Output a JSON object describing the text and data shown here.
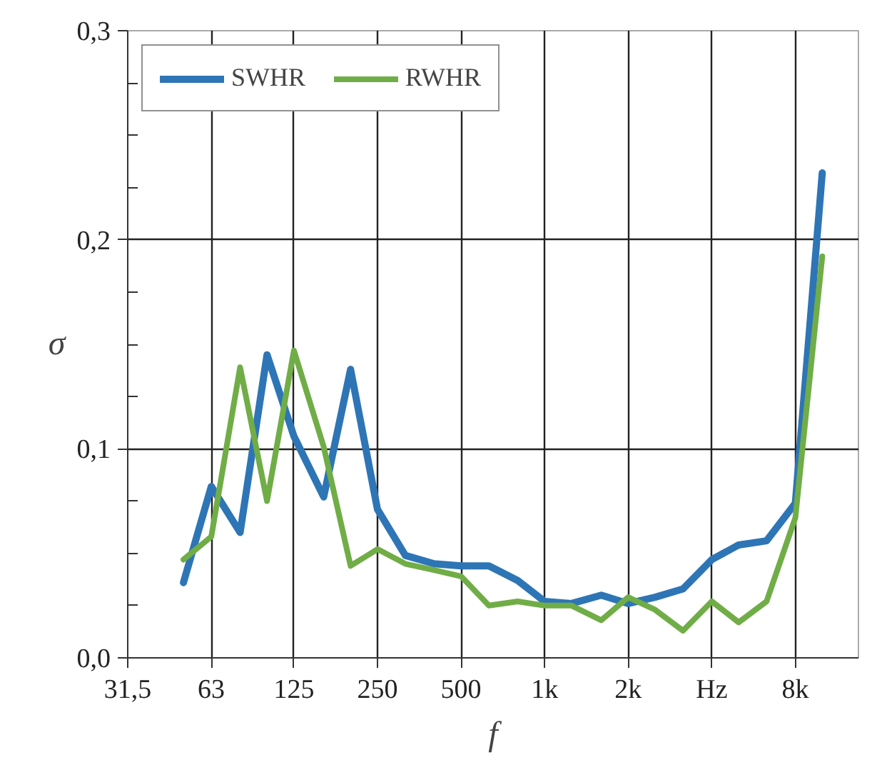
{
  "chart_data": {
    "type": "line",
    "xlabel": "f",
    "ylabel": "σ",
    "log": "x",
    "x": [
      50,
      63,
      80,
      100,
      125,
      160,
      200,
      250,
      315,
      400,
      500,
      630,
      800,
      1000,
      1250,
      1600,
      2000,
      2500,
      3150,
      4000,
      5000,
      6300,
      8000,
      10000
    ],
    "series": [
      {
        "name": "SWHR",
        "color": "#2e75b6",
        "values": [
          0.036,
          0.082,
          0.06,
          0.145,
          0.106,
          0.077,
          0.138,
          0.071,
          0.049,
          0.045,
          0.044,
          0.044,
          0.037,
          0.027,
          0.026,
          0.03,
          0.026,
          0.029,
          0.033,
          0.047,
          0.054,
          0.056,
          0.074,
          0.232
        ]
      },
      {
        "name": "RWHR",
        "color": "#70ad47",
        "values": [
          0.047,
          0.058,
          0.139,
          0.075,
          0.147,
          0.101,
          0.044,
          0.052,
          0.045,
          0.042,
          0.039,
          0.025,
          0.027,
          0.025,
          0.025,
          0.018,
          0.029,
          0.023,
          0.013,
          0.027,
          0.017,
          0.027,
          0.067,
          0.192
        ]
      }
    ],
    "xlim": [
      31.5,
      13500
    ],
    "xticks": [
      {
        "value": 31.5,
        "label": "31,5"
      },
      63,
      125,
      250,
      500,
      {
        "value": 1000,
        "label": "1k"
      },
      {
        "value": 2000,
        "label": "2k"
      },
      {
        "value": 4000,
        "label": "Hz"
      },
      {
        "value": 8000,
        "label": "8k"
      }
    ],
    "ylim": [
      0,
      0.3
    ],
    "yticks": [
      {
        "value": 0,
        "label": "0,0"
      },
      {
        "value": 0.1,
        "label": "0,1"
      },
      {
        "value": 0.2,
        "label": "0,2"
      },
      {
        "value": 0.3,
        "label": "0,3"
      }
    ],
    "grid": true,
    "legend": "top left",
    "line_style": "solid",
    "marker": "none"
  }
}
